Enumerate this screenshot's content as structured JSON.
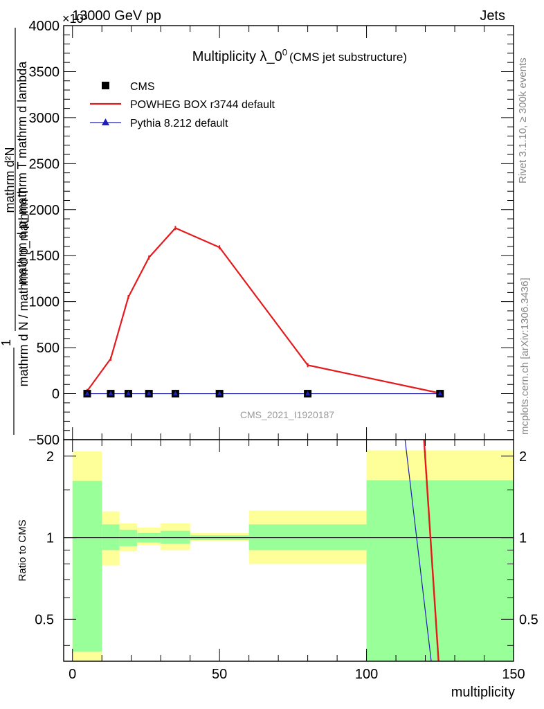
{
  "header": {
    "left": "13000 GeV pp",
    "right": "Jets",
    "exponent": "×10³",
    "side_rivet": "Rivet 3.1.10, ≥ 300k events",
    "side_mcplots": "mcplots.cern.ch [arXiv:1306.3436]",
    "watermark": "CMS_2021_I1920187"
  },
  "chart_data": [
    {
      "type": "line",
      "title": "Multiplicity λ_0",
      "title_sup": "0",
      "subtitle": "(CMS jet substructure)",
      "ylabel_numerator": "mathrm d²N",
      "ylabel_denominator": "mathrm d p_mathrm T mathrm d lambda",
      "ylabel_prefix": "1",
      "ylabel_prefix_den": "mathrm d N / mathrm d p_mathrm T",
      "xlim": [
        -3,
        150
      ],
      "ylim": [
        -500,
        4000
      ],
      "y_exponent": 3,
      "yticks": [
        -500,
        0,
        500,
        1000,
        1500,
        2000,
        2500,
        3000,
        3500,
        4000
      ],
      "ytick_labels": [
        "−500",
        "0",
        "500",
        "1000",
        "1500",
        "2000",
        "2500",
        "3000",
        "3500",
        "4000"
      ],
      "legend": [
        {
          "name": "CMS",
          "color": "#000000",
          "marker": "square"
        },
        {
          "name": "POWHEG BOX r3744 default",
          "color": "#e41a1c",
          "marker": "line"
        },
        {
          "name": "Pythia 8.212 default",
          "color": "#1f1fb4",
          "marker": "triangle"
        }
      ],
      "series": [
        {
          "name": "CMS",
          "x": [
            5,
            13,
            19,
            26,
            35,
            50,
            80,
            125
          ],
          "values": [
            0,
            0,
            0,
            0,
            0,
            0,
            0,
            0
          ]
        },
        {
          "name": "POWHEG BOX r3744 default",
          "x": [
            5,
            13,
            19,
            26,
            35,
            50,
            80,
            125
          ],
          "values": [
            30,
            380,
            1050,
            1480,
            1800,
            1590,
            310,
            5
          ]
        },
        {
          "name": "Pythia 8.212 default",
          "x": [
            5,
            13,
            19,
            26,
            35,
            50,
            80,
            125
          ],
          "values": [
            0,
            0,
            0,
            0,
            0,
            0,
            0,
            0
          ]
        }
      ]
    },
    {
      "type": "area",
      "ylabel": "Ratio to CMS",
      "xlabel": "multiplicity",
      "xlim": [
        -3,
        150
      ],
      "ylim": [
        0.35,
        2.3
      ],
      "y_scale": "log",
      "yticks": [
        0.5,
        1,
        2
      ],
      "ytick_labels": [
        "0.5",
        "1",
        "2"
      ],
      "xticks": [
        0,
        50,
        100,
        150
      ],
      "xtick_labels": [
        "0",
        "50",
        "100",
        "150"
      ],
      "bands": [
        {
          "x0": 0,
          "x1": 10,
          "green": [
            0.38,
            1.62
          ],
          "yellow": [
            0.35,
            2.08
          ]
        },
        {
          "x0": 10,
          "x1": 16,
          "green": [
            0.9,
            1.12
          ],
          "yellow": [
            0.79,
            1.25
          ]
        },
        {
          "x0": 16,
          "x1": 22,
          "green": [
            0.93,
            1.07
          ],
          "yellow": [
            0.89,
            1.13
          ]
        },
        {
          "x0": 22,
          "x1": 30,
          "green": [
            0.96,
            1.04
          ],
          "yellow": [
            0.94,
            1.09
          ]
        },
        {
          "x0": 30,
          "x1": 40,
          "green": [
            0.95,
            1.06
          ],
          "yellow": [
            0.9,
            1.13
          ]
        },
        {
          "x0": 40,
          "x1": 60,
          "green": [
            0.98,
            1.02
          ],
          "yellow": [
            0.97,
            1.04
          ]
        },
        {
          "x0": 60,
          "x1": 100,
          "green": [
            0.9,
            1.12
          ],
          "yellow": [
            0.8,
            1.26
          ]
        },
        {
          "x0": 100,
          "x1": 150,
          "green": [
            0.35,
            1.63
          ],
          "yellow": [
            0.35,
            2.1
          ]
        }
      ],
      "ratio_lines": [
        {
          "name": "POWHEG BOX r3744 default",
          "color": "#e41a1c",
          "x": [
            119.5,
            124.5
          ],
          "values": [
            2.35,
            0.35
          ]
        },
        {
          "name": "Pythia 8.212 default",
          "color": "#1f1fb4",
          "x": [
            113,
            122
          ],
          "values": [
            2.35,
            0.35
          ]
        }
      ]
    }
  ]
}
